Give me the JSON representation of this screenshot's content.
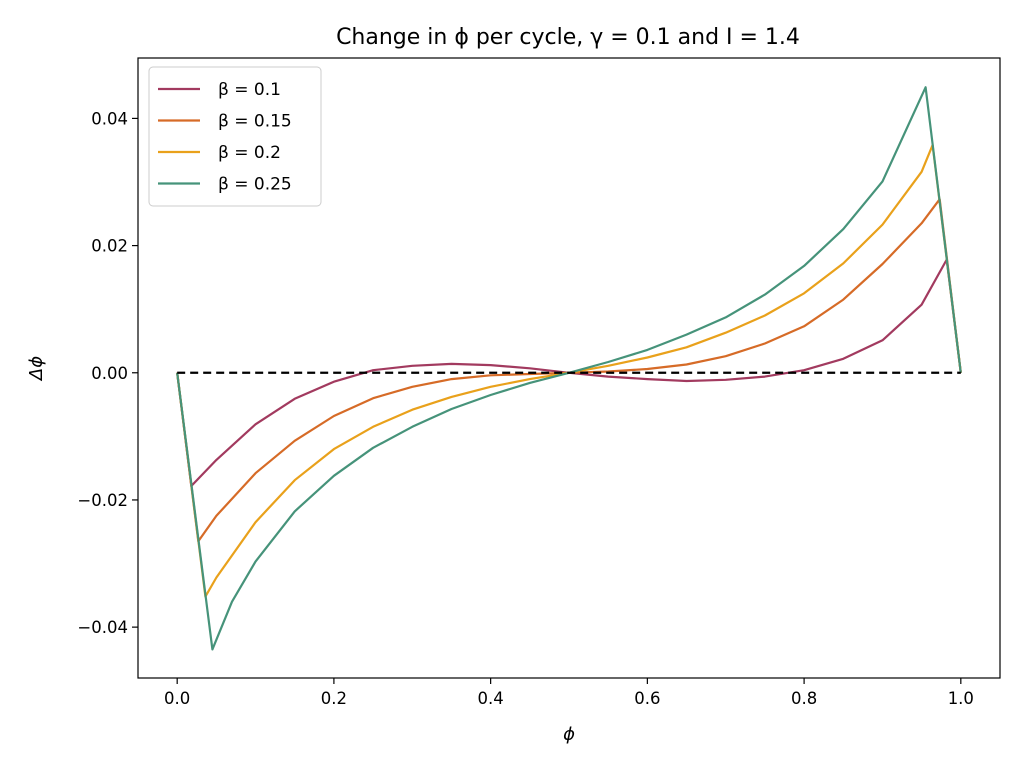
{
  "chart_data": {
    "type": "line",
    "title": "Change in ϕ per cycle, γ = 0.1 and I = 1.4",
    "xlabel": "ϕ",
    "ylabel": "Δϕ",
    "xlim": [
      -0.05,
      1.05
    ],
    "ylim": [
      -0.048,
      0.0495
    ],
    "x_ticks": [
      0.0,
      0.2,
      0.4,
      0.6,
      0.8,
      1.0
    ],
    "x_tick_labels": [
      "0.0",
      "0.2",
      "0.4",
      "0.6",
      "0.8",
      "1.0"
    ],
    "y_ticks": [
      -0.04,
      -0.02,
      0.0,
      0.02,
      0.04
    ],
    "y_tick_labels": [
      "−0.04",
      "−0.02",
      "0.00",
      "0.02",
      "0.04"
    ],
    "grid": false,
    "legend_position": "top-left",
    "baseline": {
      "y": 0.0,
      "x_range": [
        0.0,
        1.0
      ],
      "style": "dashed",
      "color": "#000000"
    },
    "series": [
      {
        "name": "β = 0.1",
        "color": "#a23a5f",
        "x": [
          0.0,
          0.018,
          0.05,
          0.1,
          0.15,
          0.2,
          0.25,
          0.3,
          0.35,
          0.4,
          0.45,
          0.5,
          0.55,
          0.6,
          0.65,
          0.7,
          0.75,
          0.8,
          0.85,
          0.9,
          0.95,
          0.982,
          1.0
        ],
        "values": [
          0.0,
          -0.0178,
          -0.0137,
          -0.0081,
          -0.0041,
          -0.0014,
          0.0004,
          0.0011,
          0.0014,
          0.0012,
          0.0007,
          0.0,
          -0.0006,
          -0.001,
          -0.0013,
          -0.0011,
          -0.0006,
          0.0004,
          0.0022,
          0.0051,
          0.0107,
          0.0178,
          0.0
        ]
      },
      {
        "name": "β = 0.15",
        "color": "#d66b27",
        "x": [
          0.0,
          0.027,
          0.05,
          0.1,
          0.15,
          0.2,
          0.25,
          0.3,
          0.35,
          0.4,
          0.45,
          0.5,
          0.55,
          0.6,
          0.65,
          0.7,
          0.75,
          0.8,
          0.85,
          0.9,
          0.95,
          0.973,
          1.0
        ],
        "values": [
          0.0,
          -0.0265,
          -0.0225,
          -0.0158,
          -0.0107,
          -0.0068,
          -0.004,
          -0.0022,
          -0.001,
          -0.0004,
          -0.0002,
          0.0,
          0.0002,
          0.0006,
          0.0013,
          0.0026,
          0.0046,
          0.0073,
          0.0115,
          0.0171,
          0.0235,
          0.0273,
          0.0
        ]
      },
      {
        "name": "β = 0.2",
        "color": "#e9a11b",
        "x": [
          0.0,
          0.036,
          0.05,
          0.1,
          0.15,
          0.2,
          0.25,
          0.3,
          0.35,
          0.4,
          0.45,
          0.5,
          0.55,
          0.6,
          0.65,
          0.7,
          0.75,
          0.8,
          0.85,
          0.9,
          0.95,
          0.964,
          1.0
        ],
        "values": [
          0.0,
          -0.0352,
          -0.0322,
          -0.0235,
          -0.0169,
          -0.012,
          -0.0085,
          -0.0058,
          -0.0038,
          -0.0022,
          -0.001,
          0.0,
          0.0011,
          0.0024,
          0.004,
          0.0063,
          0.009,
          0.0125,
          0.0172,
          0.0233,
          0.0316,
          0.0358,
          0.0
        ]
      },
      {
        "name": "β = 0.25",
        "color": "#46937a",
        "x": [
          0.0,
          0.045,
          0.07,
          0.1,
          0.15,
          0.2,
          0.25,
          0.3,
          0.35,
          0.4,
          0.45,
          0.5,
          0.55,
          0.6,
          0.65,
          0.7,
          0.75,
          0.8,
          0.85,
          0.9,
          0.955,
          1.0
        ],
        "values": [
          0.0,
          -0.0435,
          -0.036,
          -0.0297,
          -0.0218,
          -0.0162,
          -0.0118,
          -0.0085,
          -0.0057,
          -0.0035,
          -0.0016,
          0.0,
          0.0017,
          0.0036,
          0.006,
          0.0087,
          0.0123,
          0.0168,
          0.0226,
          0.0301,
          0.0449,
          0.0
        ]
      }
    ]
  }
}
